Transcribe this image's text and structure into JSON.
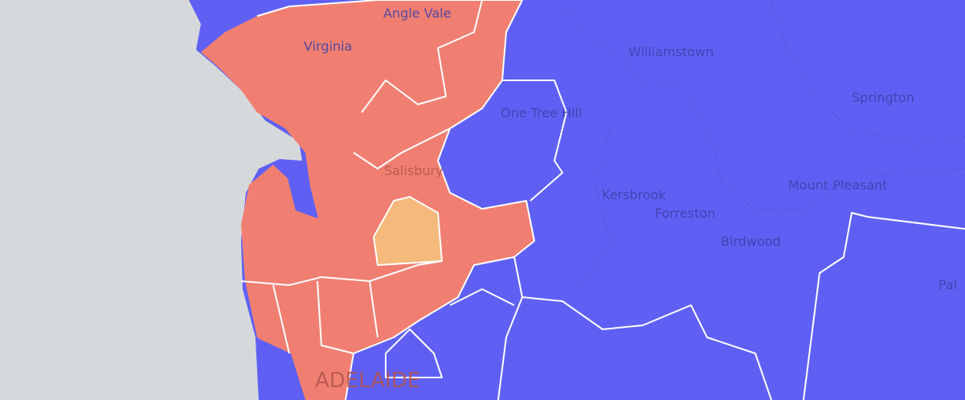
{
  "map": {
    "places": [
      "Angle Vale",
      "Virginia",
      "Williamstown",
      "Springton",
      "One Tree Hill",
      "Salisbury",
      "Kersbrook",
      "Mount Pleasant",
      "Forreston",
      "Birdwood",
      "Pal",
      "ADELAIDE"
    ]
  }
}
